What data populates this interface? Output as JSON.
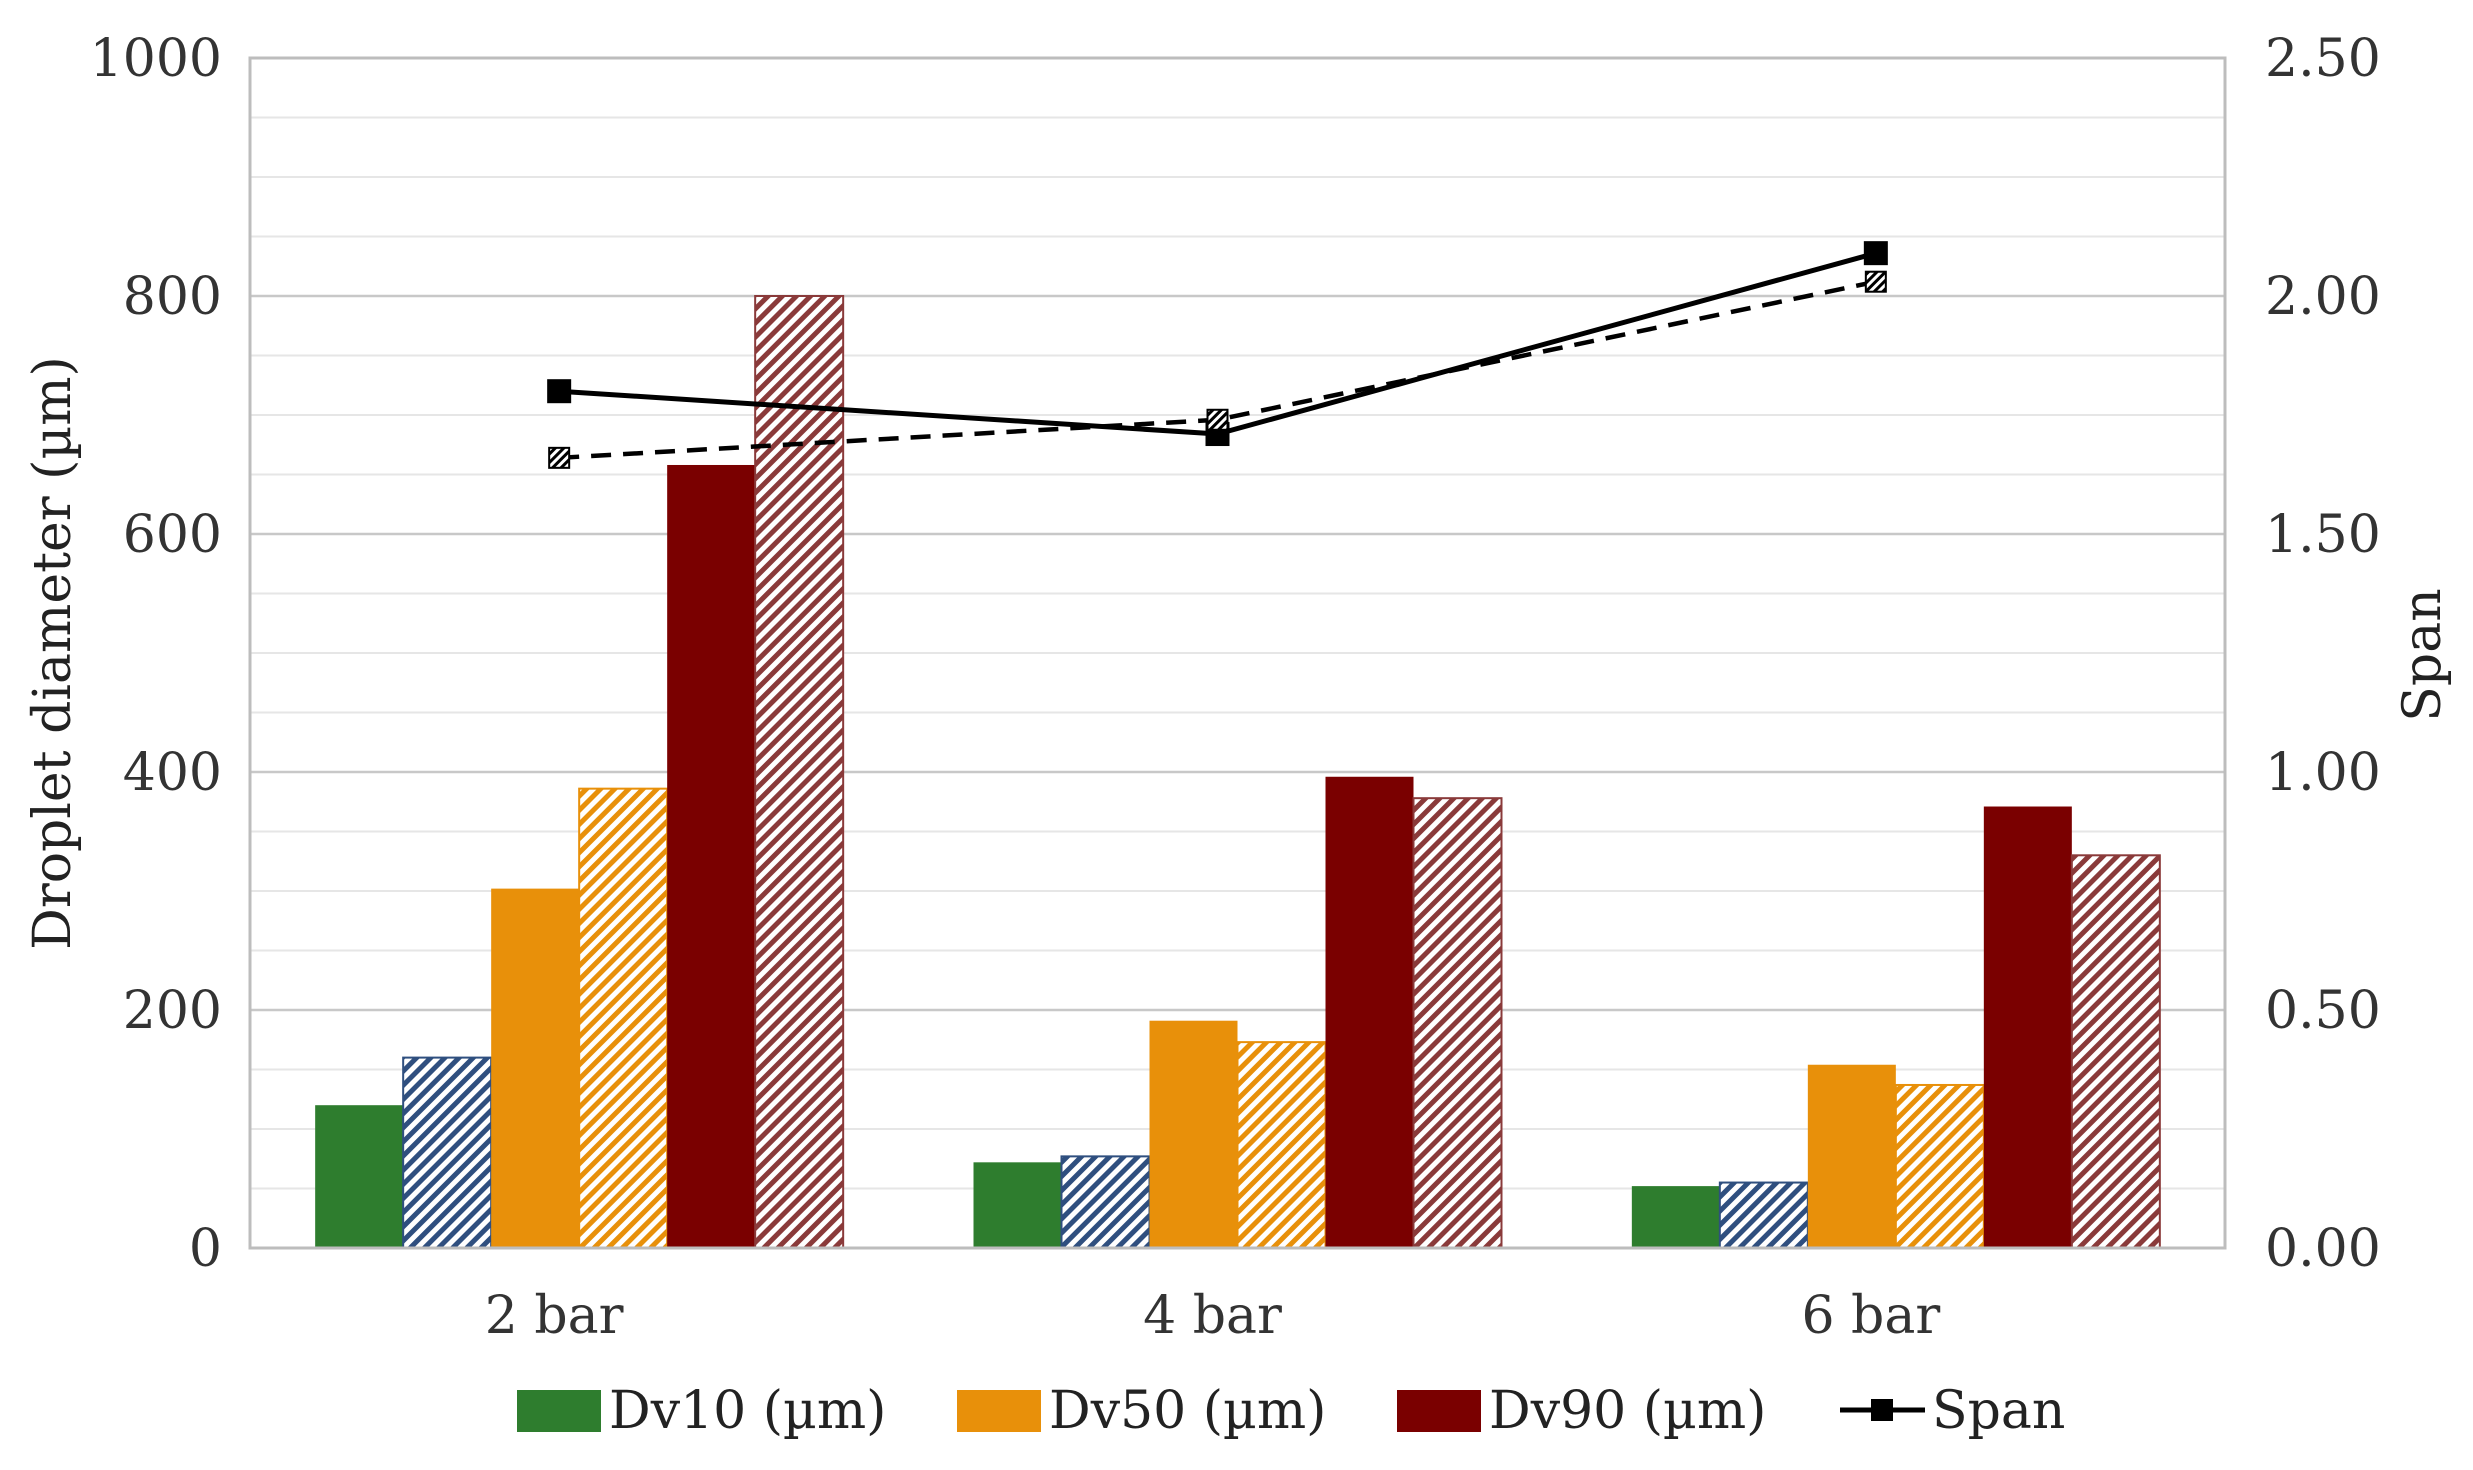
{
  "chart_data": {
    "type": "bar",
    "categories": [
      "2 bar",
      "4 bar",
      "6 bar"
    ],
    "series": [
      {
        "name": "Dv10 (µm)",
        "style": "solid",
        "color": "#2e7d2e",
        "values": [
          120,
          72,
          52
        ]
      },
      {
        "name": "Dv10 (µm)",
        "style": "hatched",
        "color": "#2f4f7f",
        "values": [
          160,
          77,
          55
        ],
        "in_legend": false
      },
      {
        "name": "Dv50 (µm)",
        "style": "solid",
        "color": "#e8900a",
        "values": [
          302,
          191,
          154
        ]
      },
      {
        "name": "Dv50 (µm)",
        "style": "hatched",
        "color": "#e8900a",
        "values": [
          386,
          173,
          137
        ],
        "in_legend": false
      },
      {
        "name": "Dv90 (µm)",
        "style": "solid",
        "color": "#7a0000",
        "values": [
          658,
          396,
          371
        ]
      },
      {
        "name": "Dv90 (µm)",
        "style": "hatched",
        "color": "#8a3a3a",
        "values": [
          800,
          378,
          330
        ],
        "in_legend": false
      }
    ],
    "line_series": [
      {
        "name": "Span",
        "axis": "right",
        "style": "solid",
        "marker": "square-filled",
        "color": "#000000",
        "values": [
          1.8,
          1.71,
          2.09
        ]
      },
      {
        "name": "Span",
        "axis": "right",
        "style": "dashed",
        "marker": "square-hatched",
        "color": "#000000",
        "values": [
          1.66,
          1.74,
          2.03
        ],
        "in_legend": false
      }
    ],
    "ylabel": "Droplet diameter (µm)",
    "y2label": "Span",
    "ylim": [
      0,
      1000
    ],
    "y2lim": [
      0,
      2.5
    ],
    "yticks": [
      "0",
      "200",
      "400",
      "600",
      "800",
      "1000"
    ],
    "y2ticks": [
      "0.00",
      "0.50",
      "1.00",
      "1.50",
      "2.00",
      "2.50"
    ],
    "grid": true,
    "legend_position": "bottom",
    "legend": [
      {
        "label": "Dv10 (µm)",
        "kind": "box",
        "color": "#2e7d2e"
      },
      {
        "label": "Dv50 (µm)",
        "kind": "box",
        "color": "#e8900a"
      },
      {
        "label": "Dv90 (µm)",
        "kind": "box",
        "color": "#7a0000"
      },
      {
        "label": "Span",
        "kind": "line",
        "color": "#000000"
      }
    ]
  }
}
